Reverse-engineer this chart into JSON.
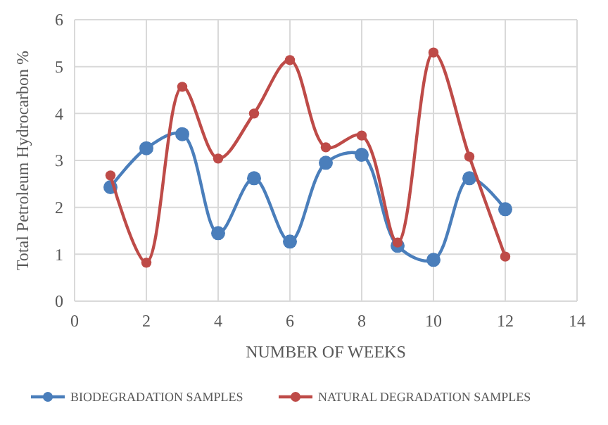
{
  "chart_data": {
    "type": "line",
    "xlabel": "NUMBER OF WEEKS",
    "ylabel": "Total Petroleum Hydrocarbon %",
    "x": [
      1,
      2,
      3,
      4,
      5,
      6,
      7,
      8,
      9,
      10,
      11,
      12
    ],
    "series": [
      {
        "name": "BIODEGRADATION SAMPLES",
        "color": "#4a7ebb",
        "values": [
          2.43,
          3.26,
          3.56,
          1.45,
          2.62,
          1.27,
          2.95,
          3.12,
          1.18,
          0.88,
          2.62,
          1.96
        ]
      },
      {
        "name": "NATURAL DEGRADATION SAMPLES",
        "color": "#be4b48",
        "values": [
          2.68,
          0.82,
          4.57,
          3.04,
          4.0,
          5.14,
          3.28,
          3.53,
          1.25,
          5.3,
          3.08,
          0.95
        ]
      }
    ],
    "xlim": [
      0,
      14
    ],
    "xticks": [
      0,
      2,
      4,
      6,
      8,
      10,
      12,
      14
    ],
    "ylim": [
      0,
      6
    ],
    "yticks": [
      0,
      1,
      2,
      3,
      4,
      5,
      6
    ],
    "grid": true,
    "legend": "bottom",
    "marker": "circle",
    "line_style": "solid"
  }
}
